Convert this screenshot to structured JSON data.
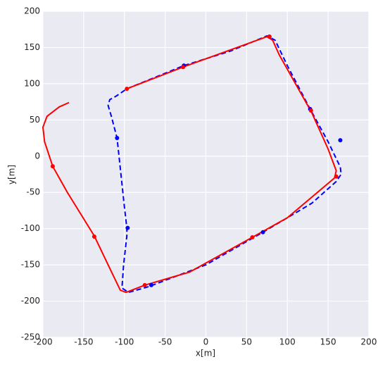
{
  "chart_data": {
    "type": "line",
    "xlabel": "x[m]",
    "ylabel": "y[m]",
    "xlim": [
      -200,
      200
    ],
    "ylim": [
      -250,
      200
    ],
    "xticks": [
      -200,
      -150,
      -100,
      -50,
      0,
      50,
      100,
      150,
      200
    ],
    "yticks": [
      -250,
      -200,
      -150,
      -100,
      -50,
      0,
      50,
      100,
      150,
      200
    ],
    "grid": true,
    "background": "#eaeaf2",
    "series": [
      {
        "color": "#0000ff",
        "style": "dashed",
        "x": [
          -97,
          -27,
          30,
          75,
          85,
          100,
          128,
          150,
          165,
          166,
          160,
          130,
          70,
          0,
          -70,
          -95,
          -103,
          -101,
          -97,
          -97,
          -100,
          -109,
          -116,
          -120,
          -118,
          -110,
          -97
        ],
        "y": [
          93,
          125,
          145,
          166,
          160,
          125,
          65,
          20,
          -15,
          -25,
          -35,
          -65,
          -105,
          -150,
          -180,
          -188,
          -182,
          -150,
          -110,
          -99,
          -70,
          25,
          55,
          70,
          78,
          83,
          93
        ],
        "marker_x": [
          -27,
          78,
          128,
          165,
          70,
          -67,
          -96,
          -109
        ],
        "marker_y": [
          125,
          165,
          65,
          22,
          -105,
          -178,
          -99,
          25
        ]
      },
      {
        "color": "#ff0000",
        "style": "solid",
        "x": [
          -168,
          -180,
          -195,
          -200,
          -198,
          -188,
          -170,
          -137,
          -120,
          -105,
          -98,
          -75,
          -20,
          57,
          100,
          158,
          160,
          150,
          130,
          90,
          82,
          75,
          -28,
          -97
        ],
        "y": [
          74,
          68,
          55,
          40,
          20,
          -14,
          -50,
          -110,
          -150,
          -185,
          -188,
          -178,
          -160,
          -112,
          -85,
          -30,
          -20,
          10,
          60,
          140,
          160,
          165,
          123,
          93
        ],
        "marker_x": [
          -97,
          -28,
          78,
          129,
          160,
          57,
          -75,
          -137,
          -188
        ],
        "marker_y": [
          93,
          123,
          165,
          63,
          -28,
          -112,
          -178,
          -111,
          -14
        ]
      }
    ]
  }
}
